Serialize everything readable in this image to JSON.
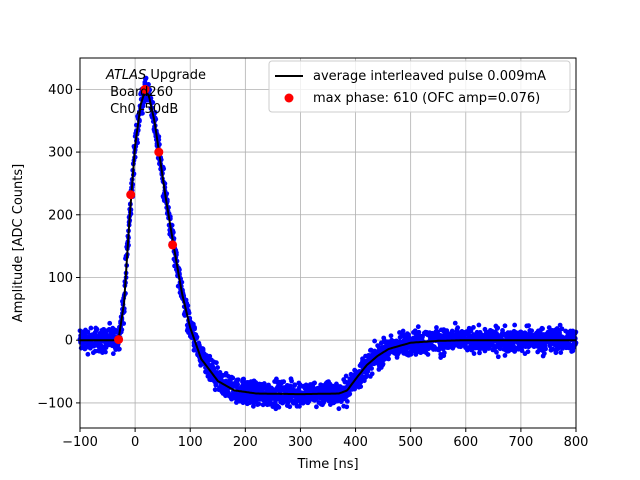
{
  "chart_data": {
    "type": "scatter",
    "xlabel": "Time [ns]",
    "ylabel": "Amplitude [ADC Counts]",
    "xlim": [
      -100,
      800
    ],
    "ylim": [
      -140,
      450
    ],
    "xticks": [
      -100,
      0,
      100,
      200,
      300,
      400,
      500,
      600,
      700,
      800
    ],
    "yticks": [
      -100,
      0,
      100,
      200,
      300,
      400
    ],
    "grid": true,
    "legend_position": "top-right",
    "annotation": {
      "line1_italic": "ATLAS",
      "line1_rest": " Upgrade",
      "line2": " Board260",
      "line3": " Ch0,-50dB"
    },
    "series": [
      {
        "name": "average interleaved pulse 0.009mA",
        "kind": "line",
        "color": "#000000",
        "points": [
          [
            -100,
            0
          ],
          [
            -35,
            0
          ],
          [
            -30,
            2
          ],
          [
            -20,
            60
          ],
          [
            -10,
            195
          ],
          [
            0,
            310
          ],
          [
            10,
            375
          ],
          [
            18,
            398
          ],
          [
            25,
            390
          ],
          [
            35,
            350
          ],
          [
            45,
            290
          ],
          [
            55,
            230
          ],
          [
            70,
            150
          ],
          [
            85,
            75
          ],
          [
            100,
            20
          ],
          [
            120,
            -30
          ],
          [
            150,
            -65
          ],
          [
            180,
            -80
          ],
          [
            220,
            -85
          ],
          [
            300,
            -86
          ],
          [
            370,
            -85
          ],
          [
            385,
            -80
          ],
          [
            400,
            -62
          ],
          [
            420,
            -40
          ],
          [
            440,
            -25
          ],
          [
            460,
            -14
          ],
          [
            500,
            -4
          ],
          [
            550,
            -1
          ],
          [
            600,
            0
          ],
          [
            800,
            0
          ]
        ]
      },
      {
        "name": "max phase: 610 (OFC amp=0.076)",
        "kind": "markers",
        "color": "#ff0000",
        "x": [
          -30,
          -8,
          18,
          43,
          68
        ],
        "y": [
          1,
          232,
          400,
          300,
          152
        ]
      },
      {
        "name": "samples",
        "kind": "scatter",
        "color": "#0000ff",
        "noise_amplitude": 15
      }
    ]
  }
}
